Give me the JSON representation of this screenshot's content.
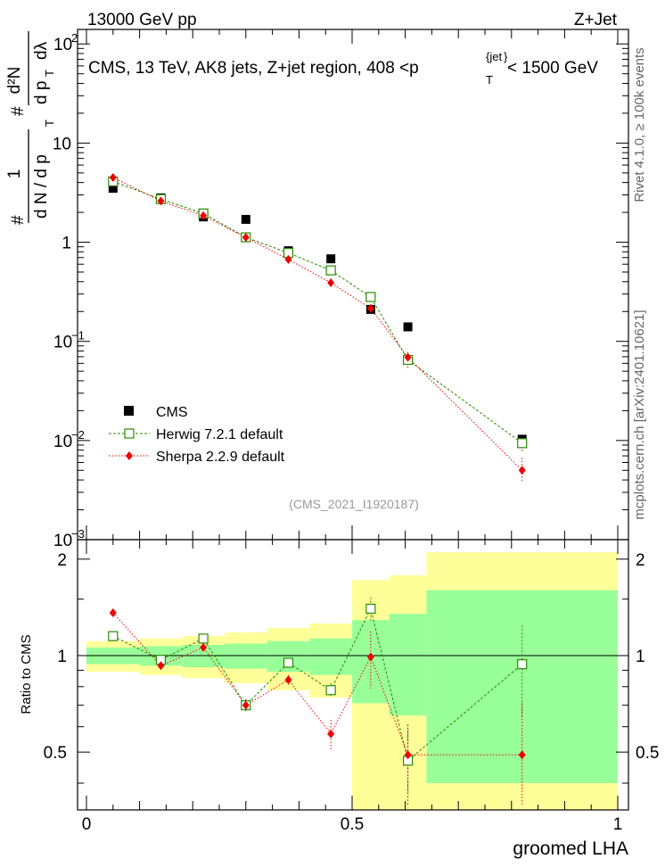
{
  "header": {
    "left": "13000 GeV pp",
    "right": "Z+Jet"
  },
  "side_labels": {
    "rivet": "Rivet 4.1.0, ≥ 100k events",
    "mcplots": "mcplots.cern.ch [arXiv:2401.10621]"
  },
  "analysis_tag": "(CMS_2021_I1920187)",
  "title_parts": {
    "main": "CMS, 13 TeV, AK8 jets, Z+jet region, 408 <p",
    "sub": "T",
    "sup": "{jet",
    "sup_close": "}",
    "tail": "< 1500 GeV"
  },
  "ylabel_parts": {
    "frac1_num": "1",
    "frac1_den": "d N / d p",
    "frac1_den_sub": "T",
    "frac2_num": "d²N",
    "frac2_den": "d p",
    "frac2_den_sub": "T",
    "frac2_den_tail": "dλ",
    "hash": "#"
  },
  "chart_data": {
    "type": "scatter",
    "xlabel": "groomed LHA",
    "ratio_ylabel": "Ratio to CMS",
    "xlim": [
      0,
      1
    ],
    "ylim": [
      0.001,
      140
    ],
    "ratio_ylim": [
      0.33,
      2.3
    ],
    "x_ticks": [
      {
        "v": 0,
        "label": "0"
      },
      {
        "v": 0.5,
        "label": "0.5"
      },
      {
        "v": 1,
        "label": "1"
      }
    ],
    "y_ticks": [
      {
        "v": 0.001,
        "base": "10",
        "exp": "−3"
      },
      {
        "v": 0.01,
        "base": "10",
        "exp": "−2"
      },
      {
        "v": 0.1,
        "base": "10",
        "exp": "−1"
      },
      {
        "v": 1,
        "base": "1",
        "exp": ""
      },
      {
        "v": 10,
        "base": "10",
        "exp": ""
      },
      {
        "v": 100,
        "base": "10",
        "exp": "2"
      }
    ],
    "ratio_ticks": [
      {
        "v": 0.5,
        "label": "0.5"
      },
      {
        "v": 1,
        "label": "1"
      },
      {
        "v": 2,
        "label": "2"
      }
    ],
    "legend": [
      "CMS",
      "Herwig 7.2.1 default",
      "Sherpa 2.2.9 default"
    ],
    "bins": [
      [
        0,
        0.1
      ],
      [
        0.1,
        0.18
      ],
      [
        0.18,
        0.26
      ],
      [
        0.26,
        0.34
      ],
      [
        0.34,
        0.42
      ],
      [
        0.42,
        0.5
      ],
      [
        0.5,
        0.57
      ],
      [
        0.57,
        0.64
      ],
      [
        0.64,
        1.0
      ]
    ],
    "x": [
      0.05,
      0.14,
      0.22,
      0.3,
      0.38,
      0.46,
      0.535,
      0.605,
      0.82
    ],
    "series": [
      {
        "name": "CMS",
        "color": "#000000",
        "values": [
          3.5,
          2.8,
          1.8,
          1.7,
          0.82,
          0.68,
          0.21,
          0.14,
          0.0103
        ]
      },
      {
        "name": "Herwig 7.2.1 default",
        "color": "#2a8a00",
        "values": [
          4.1,
          2.72,
          1.95,
          1.12,
          0.78,
          0.52,
          0.28,
          0.065,
          0.0094
        ],
        "ratio": [
          1.15,
          0.97,
          1.13,
          0.7,
          0.95,
          0.78,
          1.4,
          0.47,
          0.94
        ]
      },
      {
        "name": "Sherpa 2.2.9 default",
        "color": "#ee0000",
        "values": [
          4.5,
          2.6,
          1.85,
          1.12,
          0.67,
          0.39,
          0.215,
          0.069,
          0.005
        ],
        "ratio": [
          1.36,
          0.93,
          1.06,
          0.7,
          0.84,
          0.57,
          0.99,
          0.49,
          0.49
        ]
      }
    ],
    "ratio_band_inner": [
      0.06,
      0.07,
      0.08,
      0.09,
      0.11,
      0.13,
      0.29,
      0.35,
      0.6
    ],
    "ratio_band_outer": [
      0.11,
      0.13,
      0.15,
      0.18,
      0.22,
      0.26,
      0.72,
      0.78,
      1.1
    ]
  }
}
